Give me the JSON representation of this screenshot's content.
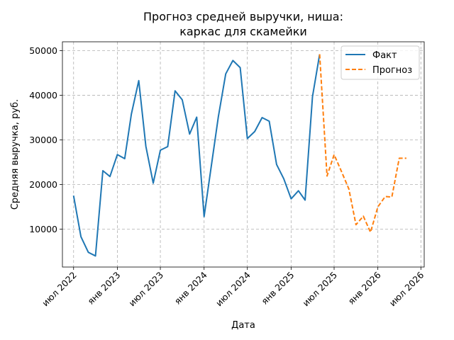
{
  "chart_data": {
    "type": "line",
    "title_lines": [
      "Прогноз средней выручки, ниша:",
      "каркас для скамейки"
    ],
    "xlabel": "Дата",
    "ylabel": "Средняя выручка, руб.",
    "x_axis": {
      "type": "date",
      "range": [
        "2022-05-15",
        "2026-07-15"
      ]
    },
    "ylim": [
      1500,
      52000
    ],
    "yticks": [
      10000,
      20000,
      30000,
      40000,
      50000
    ],
    "xticks": [
      {
        "date": "2022-07-01",
        "label": "июл 2022"
      },
      {
        "date": "2023-01-01",
        "label": "янв 2023"
      },
      {
        "date": "2023-07-01",
        "label": "июл 2023"
      },
      {
        "date": "2024-01-01",
        "label": "янв 2024"
      },
      {
        "date": "2024-07-01",
        "label": "июл 2024"
      },
      {
        "date": "2025-01-01",
        "label": "янв 2025"
      },
      {
        "date": "2025-07-01",
        "label": "июл 2025"
      },
      {
        "date": "2026-01-01",
        "label": "янв 2026"
      },
      {
        "date": "2026-07-01",
        "label": "июл 2026"
      }
    ],
    "grid": true,
    "legend": {
      "position": "top-right"
    },
    "series": [
      {
        "name": "Факт",
        "color": "#1f77b4",
        "style": "solid",
        "x": [
          "2022-07-01",
          "2022-08-01",
          "2022-09-01",
          "2022-10-01",
          "2022-11-01",
          "2022-12-01",
          "2023-01-01",
          "2023-02-01",
          "2023-03-01",
          "2023-04-01",
          "2023-05-01",
          "2023-06-01",
          "2023-07-01",
          "2023-08-01",
          "2023-09-01",
          "2023-10-01",
          "2023-11-01",
          "2023-12-01",
          "2024-01-01",
          "2024-02-01",
          "2024-03-01",
          "2024-04-01",
          "2024-05-01",
          "2024-06-01",
          "2024-07-01",
          "2024-08-01",
          "2024-09-01",
          "2024-10-01",
          "2024-11-01",
          "2024-12-01",
          "2025-01-01",
          "2025-02-01",
          "2025-03-01",
          "2025-04-01",
          "2025-05-01"
        ],
        "y": [
          17500,
          8300,
          4800,
          4000,
          23100,
          21800,
          26700,
          25800,
          35800,
          43300,
          28600,
          20300,
          27700,
          28500,
          41000,
          39000,
          31300,
          35100,
          12800,
          24400,
          35200,
          44800,
          47800,
          46200,
          30300,
          31900,
          35000,
          34200,
          24500,
          21300,
          16800,
          18600,
          16500,
          39700,
          49200
        ]
      },
      {
        "name": "Прогноз",
        "color": "#ff7f0e",
        "style": "dashed",
        "x": [
          "2025-05-01",
          "2025-06-01",
          "2025-07-01",
          "2025-08-01",
          "2025-09-01",
          "2025-10-01",
          "2025-11-01",
          "2025-12-01",
          "2026-01-01",
          "2026-02-01",
          "2026-03-01",
          "2026-04-01",
          "2026-05-01"
        ],
        "y": [
          49200,
          21900,
          26700,
          22900,
          19000,
          11000,
          12900,
          9300,
          15000,
          17300,
          17200,
          25900,
          25900
        ]
      }
    ]
  }
}
